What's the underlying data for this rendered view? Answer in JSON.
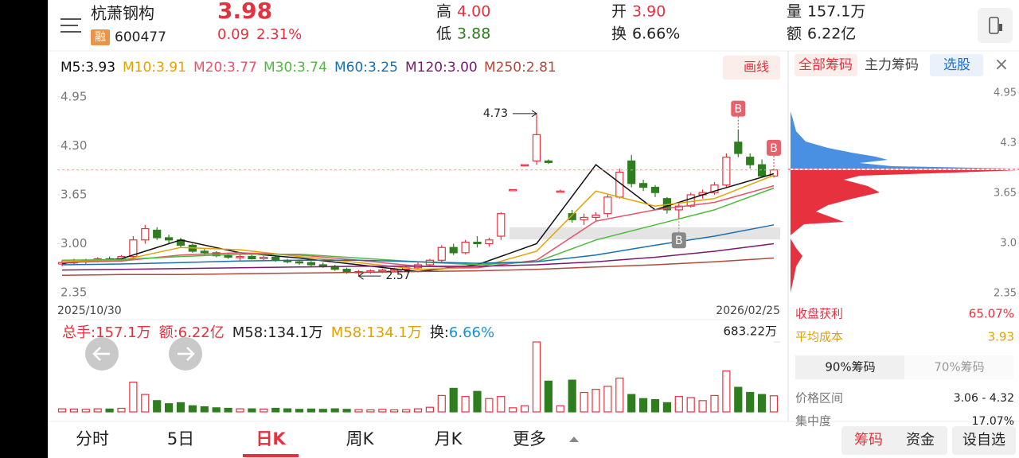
{
  "header": {
    "name": "杭萧钢构",
    "badge": "融",
    "code": "600477",
    "price": "3.98",
    "change": "0.09",
    "change_pct": "2.31%",
    "stats": [
      {
        "label": "高",
        "value": "4.00",
        "color": "#e8313f"
      },
      {
        "label": "低",
        "value": "3.88",
        "color": "#2e7d1f"
      },
      {
        "label": "开",
        "value": "3.90",
        "color": "#e8313f"
      },
      {
        "label": "换",
        "value": "6.66%",
        "color": "#222222"
      },
      {
        "label": "量",
        "value": "157.1万",
        "color": "#222222"
      },
      {
        "label": "额",
        "value": "6.22亿",
        "color": "#222222"
      }
    ]
  },
  "kline": {
    "draw_button": "画线",
    "ma_labels_colors": [
      "#111111",
      "#e3a200",
      "#e8536a",
      "#4cbb3c",
      "#1a6fb0",
      "#7a1a6e",
      "#b04a3a"
    ],
    "ma": [
      {
        "label": "M5:3.93",
        "values": [
          2.74,
          2.8,
          3.05,
          2.88,
          2.81,
          2.72,
          2.63,
          2.72,
          3.0,
          4.05,
          3.45,
          3.7,
          3.93
        ]
      },
      {
        "label": "M10:3.91",
        "values": [
          2.76,
          2.78,
          2.95,
          2.92,
          2.83,
          2.75,
          2.66,
          2.68,
          2.9,
          3.7,
          3.5,
          3.6,
          3.91
        ]
      },
      {
        "label": "M20:3.77",
        "values": [
          2.75,
          2.77,
          2.85,
          2.88,
          2.85,
          2.78,
          2.7,
          2.68,
          2.78,
          3.3,
          3.45,
          3.55,
          3.77
        ]
      },
      {
        "label": "M30:3.74",
        "values": [
          2.78,
          2.79,
          2.83,
          2.86,
          2.86,
          2.81,
          2.76,
          2.72,
          2.76,
          3.05,
          3.25,
          3.45,
          3.74
        ]
      },
      {
        "label": "M60:3.25",
        "values": [
          2.72,
          2.73,
          2.75,
          2.77,
          2.78,
          2.78,
          2.76,
          2.74,
          2.76,
          2.85,
          2.98,
          3.1,
          3.25
        ]
      },
      {
        "label": "M120:3.00",
        "values": [
          2.65,
          2.66,
          2.67,
          2.68,
          2.69,
          2.7,
          2.7,
          2.7,
          2.72,
          2.76,
          2.82,
          2.9,
          3.0
        ]
      },
      {
        "label": "M250:2.81",
        "values": [
          2.58,
          2.59,
          2.59,
          2.6,
          2.61,
          2.62,
          2.63,
          2.64,
          2.66,
          2.69,
          2.72,
          2.76,
          2.81
        ]
      }
    ],
    "ma_x": [
      0,
      5,
      10,
      15,
      20,
      25,
      30,
      35,
      40,
      45,
      50,
      55,
      60
    ],
    "ylim": [
      2.35,
      4.95
    ],
    "yticks": [
      4.95,
      {
        "value": 4.3,
        "label": "4.30"
      },
      3.65,
      {
        "value": 3,
        "label": "3.00"
      },
      2.35
    ],
    "dates": [
      "2025/10/30",
      "2026/02/25"
    ],
    "candles": [
      [
        2.73,
        2.78,
        2.7,
        2.75
      ],
      [
        2.75,
        2.8,
        2.72,
        2.76
      ],
      [
        2.76,
        2.8,
        2.72,
        2.78
      ],
      [
        2.78,
        2.82,
        2.75,
        2.8
      ],
      [
        2.8,
        2.83,
        2.77,
        2.79
      ],
      [
        2.79,
        2.85,
        2.76,
        2.83
      ],
      [
        2.83,
        3.1,
        2.8,
        3.05
      ],
      [
        3.05,
        3.25,
        3.0,
        3.2
      ],
      [
        3.18,
        3.22,
        3.05,
        3.08
      ],
      [
        3.08,
        3.12,
        3.0,
        3.05
      ],
      [
        3.05,
        3.08,
        2.95,
        2.98
      ],
      [
        2.98,
        3.0,
        2.88,
        2.9
      ],
      [
        2.9,
        2.93,
        2.85,
        2.88
      ],
      [
        2.88,
        2.9,
        2.82,
        2.84
      ],
      [
        2.84,
        2.87,
        2.8,
        2.82
      ],
      [
        2.82,
        2.86,
        2.78,
        2.83
      ],
      [
        2.83,
        2.85,
        2.79,
        2.8
      ],
      [
        2.8,
        2.84,
        2.77,
        2.82
      ],
      [
        2.82,
        2.84,
        2.76,
        2.78
      ],
      [
        2.78,
        2.8,
        2.74,
        2.76
      ],
      [
        2.76,
        2.79,
        2.72,
        2.75
      ],
      [
        2.75,
        2.77,
        2.7,
        2.72
      ],
      [
        2.72,
        2.75,
        2.68,
        2.7
      ],
      [
        2.7,
        2.72,
        2.64,
        2.66
      ],
      [
        2.66,
        2.68,
        2.6,
        2.62
      ],
      [
        2.62,
        2.65,
        2.57,
        2.63
      ],
      [
        2.63,
        2.66,
        2.6,
        2.64
      ],
      [
        2.64,
        2.67,
        2.61,
        2.65
      ],
      [
        2.65,
        2.68,
        2.62,
        2.66
      ],
      [
        2.66,
        2.7,
        2.63,
        2.68
      ],
      [
        2.68,
        2.75,
        2.65,
        2.72
      ],
      [
        2.72,
        2.8,
        2.7,
        2.78
      ],
      [
        2.78,
        2.98,
        2.75,
        2.95
      ],
      [
        2.95,
        3.0,
        2.85,
        2.88
      ],
      [
        2.88,
        3.05,
        2.86,
        3.02
      ],
      [
        3.02,
        3.1,
        2.95,
        3.0
      ],
      [
        3.0,
        3.08,
        2.96,
        3.05
      ],
      [
        3.1,
        3.42,
        3.05,
        3.4
      ],
      [
        3.72,
        3.72,
        3.72,
        3.72
      ],
      [
        4.05,
        4.05,
        4.05,
        4.05
      ],
      [
        4.1,
        4.73,
        4.05,
        4.45
      ],
      [
        4.1,
        4.12,
        4.06,
        4.08
      ],
      [
        3.7,
        3.72,
        3.68,
        3.7
      ],
      [
        3.4,
        3.45,
        3.28,
        3.32
      ],
      [
        3.32,
        3.4,
        3.25,
        3.35
      ],
      [
        3.35,
        3.42,
        3.3,
        3.38
      ],
      [
        3.4,
        3.65,
        3.35,
        3.62
      ],
      [
        3.62,
        4.0,
        3.6,
        3.95
      ],
      [
        4.1,
        4.18,
        3.75,
        3.8
      ],
      [
        3.8,
        3.85,
        3.7,
        3.75
      ],
      [
        3.75,
        3.78,
        3.62,
        3.68
      ],
      [
        3.6,
        3.62,
        3.4,
        3.45
      ],
      [
        3.45,
        3.55,
        3.32,
        3.5
      ],
      [
        3.5,
        3.68,
        3.48,
        3.65
      ],
      [
        3.65,
        3.72,
        3.6,
        3.68
      ],
      [
        3.68,
        3.82,
        3.65,
        3.78
      ],
      [
        3.78,
        4.2,
        3.75,
        4.15
      ],
      [
        4.35,
        4.52,
        4.15,
        4.2
      ],
      [
        4.15,
        4.2,
        4.0,
        4.05
      ],
      [
        4.05,
        4.12,
        3.88,
        3.9
      ],
      [
        3.9,
        4.0,
        3.88,
        3.98
      ]
    ],
    "high_mark": {
      "index": 40,
      "value": 4.73
    },
    "low_mark": {
      "index": 25,
      "value": 2.57
    },
    "signals": [
      {
        "index": 57,
        "label": "B",
        "side": "top"
      },
      {
        "index": 60,
        "label": "B",
        "side": "top"
      },
      {
        "index": 52,
        "label": "B",
        "side": "bottom"
      }
    ]
  },
  "volume": {
    "items": [
      {
        "text": "总手:157.1万",
        "color": "#e8313f"
      },
      {
        "text": "额:6.22亿",
        "color": "#e8313f"
      },
      {
        "text": "M58:134.1万",
        "color": "#222222"
      },
      {
        "text": "M58:134.1万",
        "color": "#e3a200"
      },
      {
        "text": "换:",
        "color": "#222222"
      },
      {
        "text": "6.66%",
        "color": "#1a8fd8"
      }
    ],
    "max": {
      "value": 683.22,
      "label": "683.22万"
    },
    "values": [
      30,
      28,
      25,
      30,
      28,
      35,
      290,
      170,
      110,
      80,
      90,
      60,
      50,
      40,
      35,
      30,
      30,
      28,
      35,
      30,
      25,
      28,
      25,
      30,
      25,
      22,
      20,
      25,
      20,
      22,
      30,
      45,
      160,
      230,
      150,
      200,
      130,
      150,
      40,
      60,
      683,
      300,
      60,
      310,
      190,
      220,
      250,
      330,
      170,
      130,
      120,
      90,
      150,
      140,
      110,
      160,
      400,
      240,
      190,
      170,
      157.1
    ]
  },
  "chips": {
    "tabs": [
      "全部筹码",
      "主力筹码",
      "选股"
    ],
    "yticks": [
      4.95,
      4.3,
      3.65,
      {
        "value": 3,
        "label": "3.0"
      },
      2.35
    ],
    "rows": [
      {
        "label": "收盘获利",
        "value": "65.07%"
      },
      {
        "label": "平均成本",
        "value": "3.93"
      }
    ],
    "range_tabs": [
      "90%筹码",
      "70%筹码"
    ],
    "details": [
      {
        "label": "价格区间",
        "value": "3.06 - 4.32"
      },
      {
        "label": "集中度",
        "value": "17.07%"
      }
    ]
  },
  "tabs": [
    "分时",
    "5日",
    "日K",
    "周K",
    "月K",
    "更多"
  ],
  "buttons": [
    "筹码",
    "资金",
    "设自选"
  ]
}
